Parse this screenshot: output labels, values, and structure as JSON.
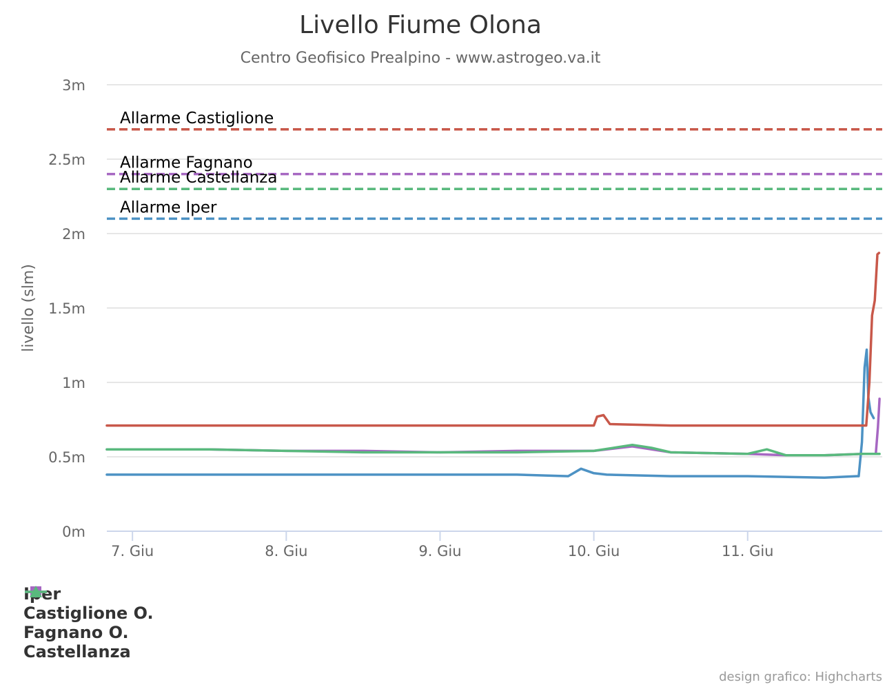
{
  "chart_data": {
    "type": "line",
    "title": "Livello Fiume Olona",
    "subtitle": "Centro Geofisico Prealpino - www.astrogeo.va.it",
    "ylabel": "livello (slm)",
    "xlabel": "",
    "ylim": [
      0,
      3
    ],
    "xlim": [
      "2024-06-06T20:00",
      "2024-06-11T21:00"
    ],
    "grid": true,
    "legend_position": "bottom-left",
    "y_ticks": [
      {
        "value": 0,
        "label": "0m"
      },
      {
        "value": 0.5,
        "label": "0.5m"
      },
      {
        "value": 1,
        "label": "1m"
      },
      {
        "value": 1.5,
        "label": "1.5m"
      },
      {
        "value": 2,
        "label": "2m"
      },
      {
        "value": 2.5,
        "label": "2.5m"
      },
      {
        "value": 3,
        "label": "3m"
      }
    ],
    "x_ticks": [
      {
        "value": "2024-06-07T00:00",
        "label": "7. Giu"
      },
      {
        "value": "2024-06-08T00:00",
        "label": "8. Giu"
      },
      {
        "value": "2024-06-09T00:00",
        "label": "9. Giu"
      },
      {
        "value": "2024-06-10T00:00",
        "label": "10. Giu"
      },
      {
        "value": "2024-06-11T00:00",
        "label": "11. Giu"
      }
    ],
    "thresholds": [
      {
        "label": "Allarme Castiglione",
        "value": 2.7,
        "color": "#c8584a"
      },
      {
        "label": "Allarme Fagnano",
        "value": 2.4,
        "color": "#a667c2"
      },
      {
        "label": "Allarme Castellanza",
        "value": 2.3,
        "color": "#59b97d"
      },
      {
        "label": "Allarme Iper",
        "value": 2.1,
        "color": "#4d92c4"
      }
    ],
    "series": [
      {
        "name": "Iper",
        "color": "#4d92c4",
        "symbol": "circle",
        "points": [
          [
            "2024-06-06T20:00",
            0.38
          ],
          [
            "2024-06-07T12:00",
            0.38
          ],
          [
            "2024-06-08T00:00",
            0.38
          ],
          [
            "2024-06-08T12:00",
            0.38
          ],
          [
            "2024-06-09T00:00",
            0.38
          ],
          [
            "2024-06-09T12:00",
            0.38
          ],
          [
            "2024-06-09T20:00",
            0.37
          ],
          [
            "2024-06-09T22:00",
            0.42
          ],
          [
            "2024-06-10T00:00",
            0.39
          ],
          [
            "2024-06-10T02:00",
            0.38
          ],
          [
            "2024-06-10T12:00",
            0.37
          ],
          [
            "2024-06-11T00:00",
            0.37
          ],
          [
            "2024-06-11T12:00",
            0.36
          ],
          [
            "2024-06-11T17:00",
            0.37
          ],
          [
            "2024-06-11T17:20",
            0.37
          ],
          [
            "2024-06-11T17:50",
            0.6
          ],
          [
            "2024-06-11T18:15",
            1.1
          ],
          [
            "2024-06-11T18:35",
            1.22
          ],
          [
            "2024-06-11T18:50",
            0.9
          ],
          [
            "2024-06-11T19:10",
            0.8
          ],
          [
            "2024-06-11T19:40",
            0.76
          ]
        ]
      },
      {
        "name": "Castiglione O.",
        "color": "#c8584a",
        "symbol": "diamond",
        "points": [
          [
            "2024-06-06T20:00",
            0.71
          ],
          [
            "2024-06-07T12:00",
            0.71
          ],
          [
            "2024-06-08T00:00",
            0.71
          ],
          [
            "2024-06-08T12:00",
            0.71
          ],
          [
            "2024-06-09T00:00",
            0.71
          ],
          [
            "2024-06-09T12:00",
            0.71
          ],
          [
            "2024-06-10T00:00",
            0.71
          ],
          [
            "2024-06-10T00:30",
            0.77
          ],
          [
            "2024-06-10T01:30",
            0.78
          ],
          [
            "2024-06-10T02:30",
            0.72
          ],
          [
            "2024-06-10T12:00",
            0.71
          ],
          [
            "2024-06-11T00:00",
            0.71
          ],
          [
            "2024-06-11T12:00",
            0.71
          ],
          [
            "2024-06-11T18:30",
            0.71
          ],
          [
            "2024-06-11T19:00",
            1.0
          ],
          [
            "2024-06-11T19:25",
            1.45
          ],
          [
            "2024-06-11T19:50",
            1.55
          ],
          [
            "2024-06-11T20:15",
            1.86
          ],
          [
            "2024-06-11T20:30",
            1.87
          ]
        ]
      },
      {
        "name": "Fagnano O.",
        "color": "#a667c2",
        "symbol": "square",
        "points": [
          [
            "2024-06-06T20:00",
            0.55
          ],
          [
            "2024-06-07T12:00",
            0.55
          ],
          [
            "2024-06-08T00:00",
            0.54
          ],
          [
            "2024-06-08T12:00",
            0.54
          ],
          [
            "2024-06-09T00:00",
            0.53
          ],
          [
            "2024-06-09T12:00",
            0.54
          ],
          [
            "2024-06-10T00:00",
            0.54
          ],
          [
            "2024-06-10T06:00",
            0.57
          ],
          [
            "2024-06-10T12:00",
            0.53
          ],
          [
            "2024-06-11T00:00",
            0.52
          ],
          [
            "2024-06-11T06:00",
            0.51
          ],
          [
            "2024-06-11T12:00",
            0.51
          ],
          [
            "2024-06-11T18:00",
            0.52
          ],
          [
            "2024-06-11T20:00",
            0.52
          ],
          [
            "2024-06-11T20:20",
            0.7
          ],
          [
            "2024-06-11T20:35",
            0.89
          ]
        ]
      },
      {
        "name": "Castellanza",
        "color": "#59b97d",
        "symbol": "triangle",
        "points": [
          [
            "2024-06-06T20:00",
            0.55
          ],
          [
            "2024-06-07T12:00",
            0.55
          ],
          [
            "2024-06-08T00:00",
            0.54
          ],
          [
            "2024-06-08T12:00",
            0.53
          ],
          [
            "2024-06-09T00:00",
            0.53
          ],
          [
            "2024-06-09T12:00",
            0.53
          ],
          [
            "2024-06-10T00:00",
            0.54
          ],
          [
            "2024-06-10T06:00",
            0.58
          ],
          [
            "2024-06-10T09:00",
            0.56
          ],
          [
            "2024-06-10T12:00",
            0.53
          ],
          [
            "2024-06-11T00:00",
            0.52
          ],
          [
            "2024-06-11T03:00",
            0.55
          ],
          [
            "2024-06-11T06:00",
            0.51
          ],
          [
            "2024-06-11T12:00",
            0.51
          ],
          [
            "2024-06-11T18:00",
            0.52
          ],
          [
            "2024-06-11T20:35",
            0.52
          ]
        ]
      }
    ],
    "credits": "design grafico: Highcharts"
  }
}
